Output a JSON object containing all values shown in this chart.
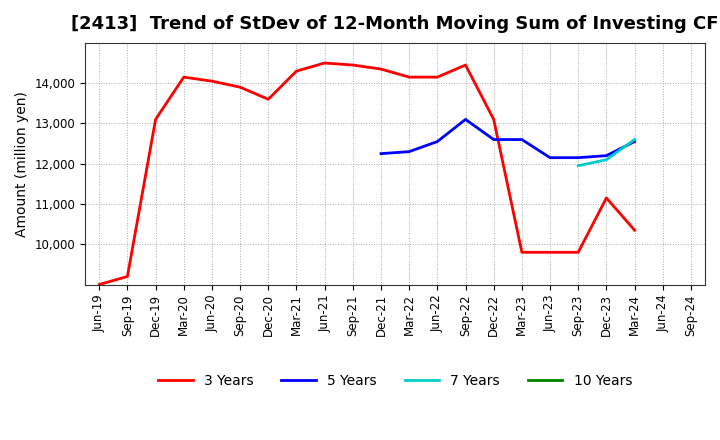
{
  "title": "[2413]  Trend of StDev of 12-Month Moving Sum of Investing CF",
  "ylabel": "Amount (million yen)",
  "background_color": "#ffffff",
  "grid_color": "#aaaaaa",
  "series": {
    "3y": {
      "color": "#ff0000",
      "label": "3 Years",
      "x": [
        "Jun-19",
        "Sep-19",
        "Dec-19",
        "Mar-20",
        "Jun-20",
        "Sep-20",
        "Dec-20",
        "Mar-21",
        "Jun-21",
        "Sep-21",
        "Dec-21",
        "Mar-22",
        "Jun-22",
        "Sep-22",
        "Dec-22",
        "Mar-23",
        "Jun-23",
        "Sep-23",
        "Dec-23",
        "Mar-24",
        "Jun-24",
        "Sep-24"
      ],
      "y": [
        9000,
        9200,
        13100,
        14150,
        14050,
        13900,
        13600,
        14300,
        14500,
        14450,
        14350,
        14150,
        14150,
        14450,
        13100,
        9800,
        9800,
        9800,
        11150,
        10350,
        null,
        null
      ]
    },
    "5y": {
      "color": "#0000ff",
      "label": "5 Years",
      "x": [
        "Jun-19",
        "Sep-19",
        "Dec-19",
        "Mar-20",
        "Jun-20",
        "Sep-20",
        "Dec-20",
        "Mar-21",
        "Jun-21",
        "Sep-21",
        "Dec-21",
        "Mar-22",
        "Jun-22",
        "Sep-22",
        "Dec-22",
        "Mar-23",
        "Jun-23",
        "Sep-23",
        "Dec-23",
        "Mar-24",
        "Jun-24",
        "Sep-24"
      ],
      "y": [
        null,
        null,
        null,
        null,
        null,
        null,
        null,
        null,
        null,
        null,
        12250,
        12300,
        12550,
        13100,
        12600,
        12600,
        12150,
        12150,
        12200,
        12550,
        null,
        null
      ]
    },
    "7y": {
      "color": "#00cccc",
      "label": "7 Years",
      "x": [
        "Jun-19",
        "Sep-19",
        "Dec-19",
        "Mar-20",
        "Jun-20",
        "Sep-20",
        "Dec-20",
        "Mar-21",
        "Jun-21",
        "Sep-21",
        "Dec-21",
        "Mar-22",
        "Jun-22",
        "Sep-22",
        "Dec-22",
        "Mar-23",
        "Jun-23",
        "Sep-23",
        "Dec-23",
        "Mar-24",
        "Jun-24",
        "Sep-24"
      ],
      "y": [
        null,
        null,
        null,
        null,
        null,
        null,
        null,
        null,
        null,
        null,
        null,
        null,
        null,
        null,
        null,
        null,
        null,
        11950,
        12100,
        12600,
        null,
        null
      ]
    },
    "10y": {
      "color": "#008000",
      "label": "10 Years",
      "x": [
        "Jun-19",
        "Sep-19",
        "Dec-19",
        "Mar-20",
        "Jun-20",
        "Sep-20",
        "Dec-20",
        "Mar-21",
        "Jun-21",
        "Sep-21",
        "Dec-21",
        "Mar-22",
        "Jun-22",
        "Sep-22",
        "Dec-22",
        "Mar-23",
        "Jun-23",
        "Sep-23",
        "Dec-23",
        "Mar-24",
        "Jun-24",
        "Sep-24"
      ],
      "y": [
        null,
        null,
        null,
        null,
        null,
        null,
        null,
        null,
        null,
        null,
        null,
        null,
        null,
        null,
        null,
        null,
        null,
        null,
        null,
        null,
        null,
        null
      ]
    }
  },
  "x_labels": [
    "Jun-19",
    "Sep-19",
    "Dec-19",
    "Mar-20",
    "Jun-20",
    "Sep-20",
    "Dec-20",
    "Mar-21",
    "Jun-21",
    "Sep-21",
    "Dec-21",
    "Mar-22",
    "Jun-22",
    "Sep-22",
    "Dec-22",
    "Mar-23",
    "Jun-23",
    "Sep-23",
    "Dec-23",
    "Mar-24",
    "Jun-24",
    "Sep-24"
  ],
  "ylim": [
    9000,
    15000
  ],
  "yticks": [
    10000,
    11000,
    12000,
    13000,
    14000
  ],
  "title_fontsize": 13,
  "axis_fontsize": 10,
  "tick_fontsize": 8.5,
  "legend_fontsize": 10
}
